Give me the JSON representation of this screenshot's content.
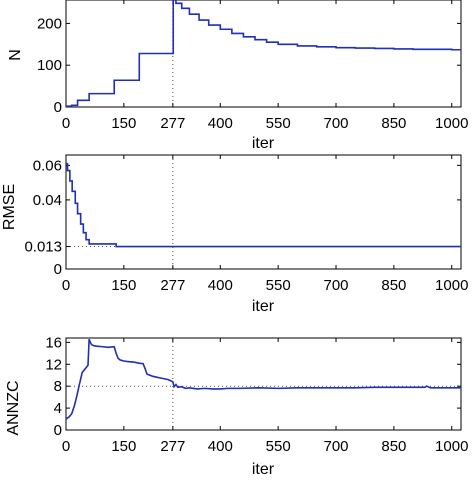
{
  "colors": {
    "series": "#1f2fb8",
    "reference": "#555555",
    "axis": "#000000"
  },
  "chart_data": [
    {
      "type": "line",
      "title": "",
      "xlabel": "iter",
      "ylabel": "N",
      "xlim": [
        0,
        1024
      ],
      "ylim": [
        0,
        256
      ],
      "xticks": [
        0,
        150,
        277,
        400,
        550,
        700,
        850,
        1000
      ],
      "yticks": [
        0,
        100,
        200
      ],
      "reference_lines": [
        {
          "axis": "x",
          "value": 277
        }
      ],
      "series": [
        {
          "step": true,
          "x": [
            0,
            15,
            30,
            60,
            125,
            190,
            277,
            278,
            285,
            300,
            320,
            345,
            370,
            400,
            430,
            460,
            490,
            520,
            550,
            600,
            650,
            700,
            750,
            800,
            850,
            900,
            950,
            1000,
            1024
          ],
          "y": [
            2,
            4,
            16,
            32,
            64,
            128,
            128,
            256,
            248,
            236,
            222,
            208,
            196,
            186,
            176,
            168,
            161,
            155,
            150,
            146,
            144,
            142,
            141,
            140,
            139,
            138,
            138,
            137,
            137
          ]
        }
      ]
    },
    {
      "type": "line",
      "title": "",
      "xlabel": "iter",
      "ylabel": "RMSE",
      "xlim": [
        0,
        1024
      ],
      "ylim": [
        0,
        0.066
      ],
      "xticks": [
        0,
        150,
        277,
        400,
        550,
        700,
        850,
        1000
      ],
      "yticks": [
        0,
        0.013,
        0.04,
        0.06
      ],
      "reference_lines": [
        {
          "axis": "x",
          "value": 277
        },
        {
          "axis": "y",
          "value": 0.013
        }
      ],
      "series": [
        {
          "step": true,
          "x": [
            0,
            4,
            10,
            16,
            24,
            30,
            38,
            45,
            52,
            60,
            130,
            1024
          ],
          "y": [
            0.061,
            0.057,
            0.051,
            0.045,
            0.038,
            0.032,
            0.026,
            0.021,
            0.017,
            0.0145,
            0.013,
            0.013
          ]
        }
      ]
    },
    {
      "type": "line",
      "title": "",
      "xlabel": "iter",
      "ylabel": "ANNZC",
      "xlim": [
        0,
        1024
      ],
      "ylim": [
        0,
        16.8
      ],
      "xticks": [
        0,
        150,
        277,
        400,
        550,
        700,
        850,
        1000
      ],
      "yticks": [
        0,
        4,
        8,
        12,
        16
      ],
      "reference_lines": [
        {
          "axis": "x",
          "value": 277
        },
        {
          "axis": "y",
          "value": 8
        }
      ],
      "series": [
        {
          "step": false,
          "x": [
            0,
            8,
            15,
            22,
            28,
            35,
            42,
            50,
            57,
            60,
            62,
            66,
            72,
            80,
            95,
            110,
            125,
            130,
            135,
            140,
            150,
            160,
            175,
            190,
            200,
            205,
            210,
            225,
            245,
            265,
            277,
            280,
            285,
            290,
            300,
            310,
            320,
            340,
            360,
            380,
            400,
            420,
            450,
            500,
            550,
            600,
            650,
            700,
            750,
            800,
            850,
            900,
            930,
            935,
            945,
            1000,
            1024
          ],
          "y": [
            2.0,
            2.4,
            3.0,
            4.5,
            6.2,
            8.4,
            10.5,
            11.2,
            11.8,
            16.6,
            16.2,
            15.6,
            15.4,
            15.3,
            15.2,
            15.1,
            15.2,
            14.0,
            13.1,
            12.8,
            12.6,
            12.5,
            12.4,
            12.2,
            12.1,
            11.2,
            10.2,
            9.8,
            9.5,
            9.2,
            8.8,
            7.9,
            8.3,
            7.8,
            7.9,
            7.6,
            7.7,
            7.5,
            7.6,
            7.5,
            7.5,
            7.6,
            7.6,
            7.7,
            7.6,
            7.7,
            7.7,
            7.7,
            7.7,
            7.8,
            7.8,
            7.8,
            7.8,
            8.0,
            7.7,
            7.7,
            7.7
          ]
        }
      ]
    }
  ]
}
